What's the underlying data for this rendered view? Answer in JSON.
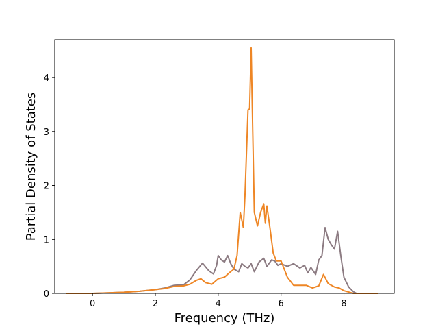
{
  "chart_data": {
    "type": "line",
    "title": "",
    "xlabel": "Frequency (THz)",
    "ylabel": "Partial Density of States",
    "xlim": [
      -1.2,
      9.6
    ],
    "ylim": [
      0,
      4.7
    ],
    "x_ticks": [
      0,
      2,
      4,
      6,
      8
    ],
    "y_ticks": [
      0,
      1,
      2,
      3,
      4
    ],
    "grid": false,
    "legend": "none",
    "series": [
      {
        "color": "#8c7b82",
        "points": [
          [
            -0.85,
            0
          ],
          [
            0.0,
            0.0
          ],
          [
            0.5,
            0.01
          ],
          [
            1.0,
            0.02
          ],
          [
            1.5,
            0.04
          ],
          [
            2.0,
            0.07
          ],
          [
            2.3,
            0.1
          ],
          [
            2.6,
            0.15
          ],
          [
            2.9,
            0.16
          ],
          [
            3.1,
            0.25
          ],
          [
            3.3,
            0.42
          ],
          [
            3.5,
            0.56
          ],
          [
            3.7,
            0.42
          ],
          [
            3.85,
            0.36
          ],
          [
            3.95,
            0.52
          ],
          [
            4.0,
            0.7
          ],
          [
            4.1,
            0.62
          ],
          [
            4.2,
            0.58
          ],
          [
            4.3,
            0.7
          ],
          [
            4.4,
            0.55
          ],
          [
            4.5,
            0.45
          ],
          [
            4.65,
            0.4
          ],
          [
            4.75,
            0.55
          ],
          [
            4.85,
            0.5
          ],
          [
            4.95,
            0.47
          ],
          [
            5.05,
            0.55
          ],
          [
            5.15,
            0.4
          ],
          [
            5.3,
            0.58
          ],
          [
            5.45,
            0.65
          ],
          [
            5.55,
            0.5
          ],
          [
            5.7,
            0.62
          ],
          [
            5.8,
            0.6
          ],
          [
            5.9,
            0.52
          ],
          [
            6.0,
            0.55
          ],
          [
            6.2,
            0.5
          ],
          [
            6.4,
            0.55
          ],
          [
            6.6,
            0.47
          ],
          [
            6.75,
            0.52
          ],
          [
            6.85,
            0.38
          ],
          [
            6.95,
            0.48
          ],
          [
            7.1,
            0.35
          ],
          [
            7.2,
            0.62
          ],
          [
            7.3,
            0.7
          ],
          [
            7.4,
            1.22
          ],
          [
            7.5,
            1.0
          ],
          [
            7.6,
            0.9
          ],
          [
            7.7,
            0.82
          ],
          [
            7.8,
            1.15
          ],
          [
            7.9,
            0.7
          ],
          [
            8.0,
            0.3
          ],
          [
            8.15,
            0.12
          ],
          [
            8.3,
            0.03
          ],
          [
            8.4,
            0.0
          ],
          [
            9.1,
            0.0
          ]
        ]
      },
      {
        "color": "#ee8625",
        "points": [
          [
            -0.85,
            0
          ],
          [
            0.0,
            0.0
          ],
          [
            0.5,
            0.01
          ],
          [
            1.0,
            0.02
          ],
          [
            1.5,
            0.04
          ],
          [
            2.0,
            0.07
          ],
          [
            2.3,
            0.09
          ],
          [
            2.6,
            0.13
          ],
          [
            2.9,
            0.14
          ],
          [
            3.1,
            0.17
          ],
          [
            3.3,
            0.24
          ],
          [
            3.45,
            0.27
          ],
          [
            3.6,
            0.2
          ],
          [
            3.8,
            0.17
          ],
          [
            4.0,
            0.27
          ],
          [
            4.2,
            0.3
          ],
          [
            4.35,
            0.38
          ],
          [
            4.5,
            0.45
          ],
          [
            4.6,
            0.7
          ],
          [
            4.7,
            1.5
          ],
          [
            4.8,
            1.22
          ],
          [
            4.85,
            1.8
          ],
          [
            4.95,
            3.4
          ],
          [
            5.0,
            3.42
          ],
          [
            5.05,
            4.55
          ],
          [
            5.1,
            3.0
          ],
          [
            5.15,
            1.5
          ],
          [
            5.25,
            1.25
          ],
          [
            5.35,
            1.5
          ],
          [
            5.45,
            1.66
          ],
          [
            5.5,
            1.3
          ],
          [
            5.55,
            1.62
          ],
          [
            5.65,
            1.2
          ],
          [
            5.75,
            0.75
          ],
          [
            5.85,
            0.6
          ],
          [
            6.0,
            0.6
          ],
          [
            6.2,
            0.3
          ],
          [
            6.4,
            0.15
          ],
          [
            6.8,
            0.15
          ],
          [
            7.0,
            0.1
          ],
          [
            7.2,
            0.14
          ],
          [
            7.35,
            0.35
          ],
          [
            7.5,
            0.18
          ],
          [
            7.7,
            0.12
          ],
          [
            7.85,
            0.1
          ],
          [
            8.0,
            0.05
          ],
          [
            8.3,
            0.0
          ],
          [
            9.1,
            0.0
          ]
        ]
      }
    ]
  }
}
